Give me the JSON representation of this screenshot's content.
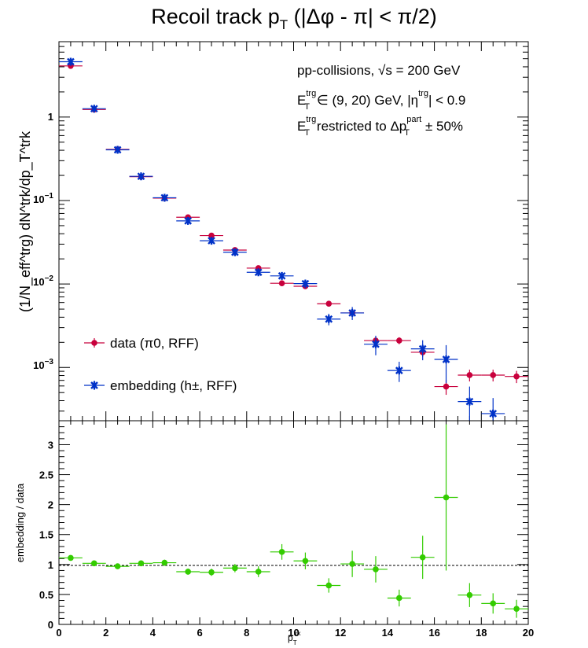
{
  "chart_data": [
    {
      "type": "scatter",
      "title": "Recoil track p",
      "title_sub": "T",
      "title_tail": " (|Δφ - π| < π/2)",
      "ylabel": "(1/N_eff^trg) dN^trk/dp_T^trk",
      "yscale": "log",
      "ylim": [
        0.00023,
        8
      ],
      "xlim": [
        0,
        20
      ],
      "grid": false,
      "legend_position": "bottom-left",
      "legend": [
        "data (π0, RFF)",
        "embedding (h±, RFF)"
      ],
      "ytick_labels": {
        "one": "1",
        "m1": {
          "base": "10",
          "exp": "−1"
        },
        "m2": {
          "base": "10",
          "exp": "−2"
        },
        "m3": {
          "base": "10",
          "exp": "−3"
        }
      },
      "annotations": {
        "line1_a": "pp-collisions, ",
        "line1_b": "s",
        "line1_c": " = 200 GeV",
        "line2_a": "E",
        "line2_b": "∈ (9, 20) GeV, |η",
        "line2_c": "| < 0.9",
        "line3_a": "E",
        "line3_b": "restricted to Δp",
        "line3_c": "± 50%",
        "sup_trg": "trg",
        "sub_T": "T",
        "sup_part": "part"
      },
      "series": [
        {
          "name": "data (π0, RFF)",
          "color": "#c8003c",
          "x": [
            0.5,
            1.5,
            2.5,
            3.5,
            4.5,
            5.5,
            6.5,
            7.5,
            8.5,
            9.5,
            10.5,
            11.5,
            12.5,
            13.5,
            14.5,
            15.5,
            16.5,
            17.5,
            18.5,
            19.5
          ],
          "y": [
            4.1,
            1.23,
            0.41,
            0.193,
            0.107,
            0.063,
            0.038,
            0.0255,
            0.0155,
            0.0102,
            0.0094,
            0.0058,
            0.0045,
            0.0021,
            0.0021,
            0.00152,
            0.00059,
            0.00081,
            0.00081,
            0.00078
          ],
          "yerr": [
            0.1,
            0.03,
            0.01,
            0.004,
            0.003,
            0.002,
            0.0012,
            0.0009,
            0.0006,
            0.0005,
            0.0005,
            0.0004,
            0.0003,
            0.0002,
            0.0002,
            0.00018,
            0.00012,
            0.00013,
            0.00013,
            0.00013
          ]
        },
        {
          "name": "embedding (h±, RFF)",
          "color": "#0032c8",
          "x": [
            0.5,
            1.5,
            2.5,
            3.5,
            4.5,
            5.5,
            6.5,
            7.5,
            8.5,
            9.5,
            10.5,
            11.5,
            12.5,
            13.5,
            14.5,
            15.5,
            16.5,
            17.5,
            18.5,
            19.5
          ],
          "y": [
            4.6,
            1.26,
            0.405,
            0.195,
            0.108,
            0.057,
            0.033,
            0.024,
            0.0138,
            0.0125,
            0.0101,
            0.0038,
            0.0045,
            0.0019,
            0.00092,
            0.00167,
            0.00125,
            0.00039,
            0.00028,
            null
          ],
          "yerr": [
            0.15,
            0.04,
            0.012,
            0.006,
            0.004,
            0.002,
            0.0015,
            0.0012,
            0.0009,
            0.0012,
            0.0012,
            0.0006,
            0.0008,
            0.0005,
            0.00025,
            0.00045,
            0.0006,
            0.0002,
            0.00015,
            null
          ]
        }
      ]
    },
    {
      "type": "scatter",
      "xlabel": "p",
      "xlabel_sub": "T",
      "xlabel_sup": "trk",
      "ylabel": "embedding / data",
      "xlim": [
        0,
        20
      ],
      "ylim": [
        0,
        3.4
      ],
      "grid": false,
      "xticks": [
        0,
        2,
        4,
        6,
        8,
        10,
        12,
        14,
        16,
        18,
        20
      ],
      "yticks": [
        0,
        0.5,
        1,
        1.5,
        2,
        2.5,
        3
      ],
      "reference_line": 1,
      "series": [
        {
          "name": "embedding / data",
          "color": "#33cc00",
          "x": [
            0.5,
            1.5,
            2.5,
            3.5,
            4.5,
            5.5,
            6.5,
            7.5,
            8.5,
            9.5,
            10.5,
            11.5,
            12.5,
            13.5,
            14.5,
            15.5,
            16.5,
            17.5,
            18.5,
            19.5
          ],
          "y": [
            1.11,
            1.02,
            0.97,
            1.02,
            1.03,
            0.88,
            0.87,
            0.94,
            0.88,
            1.21,
            1.06,
            0.65,
            1.01,
            0.92,
            0.44,
            1.12,
            2.12,
            0.49,
            0.35,
            0.26
          ],
          "yerr": [
            0.04,
            0.03,
            0.03,
            0.03,
            0.05,
            0.05,
            0.06,
            0.07,
            0.09,
            0.13,
            0.14,
            0.12,
            0.22,
            0.22,
            0.14,
            0.36,
            1.22,
            0.2,
            0.17,
            0.15
          ]
        }
      ]
    }
  ]
}
